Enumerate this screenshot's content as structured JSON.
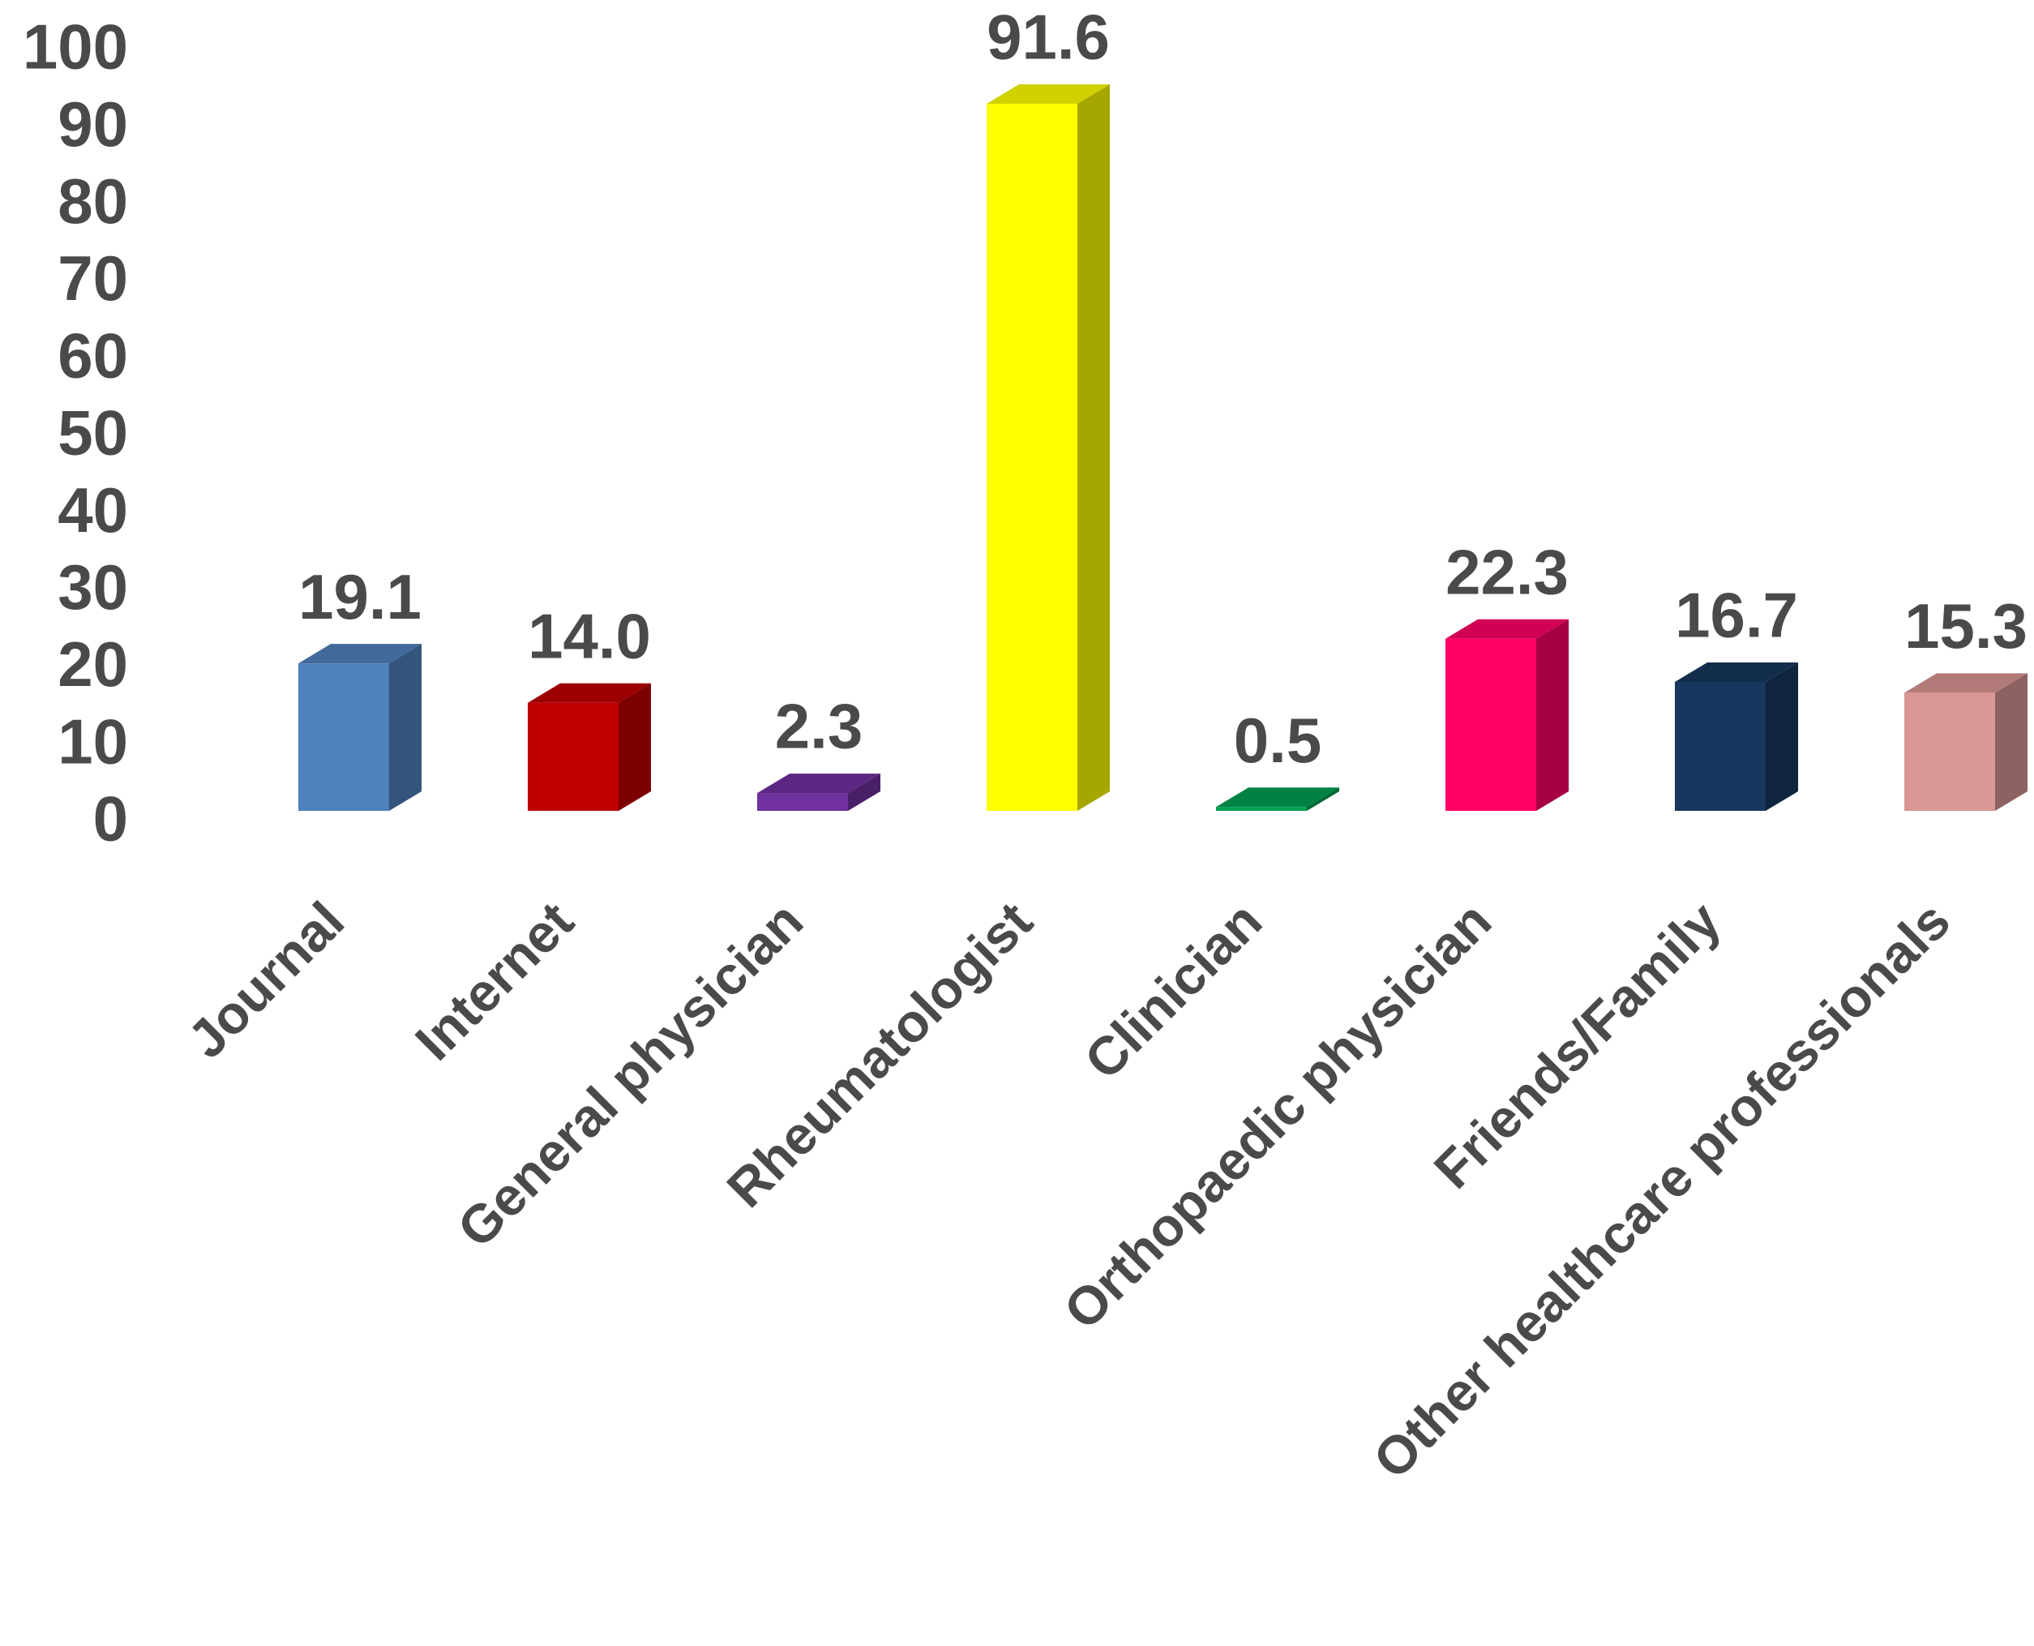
{
  "chart_data": {
    "type": "bar3d",
    "categories": [
      "Journal",
      "Internet",
      "General physician",
      "Rheumatologist",
      "Clinician",
      "Orthopaedic physician",
      "Friends/Family",
      "Other healthcare professionals"
    ],
    "values": [
      19.1,
      14.0,
      2.3,
      91.6,
      0.5,
      22.3,
      16.7,
      15.3
    ],
    "value_labels": [
      "19.1",
      "14.0",
      "2.3",
      "91.6",
      "0.5",
      "22.3",
      "16.7",
      "15.3"
    ],
    "colors": [
      "#4f81bd",
      "#c00000",
      "#7030a0",
      "#ffff00",
      "#00a050",
      "#ff0066",
      "#17375e",
      "#d99694"
    ],
    "ylim": [
      0,
      100
    ],
    "yticks": [
      0,
      10,
      20,
      30,
      40,
      50,
      60,
      70,
      80,
      90,
      100
    ],
    "grid": false
  }
}
